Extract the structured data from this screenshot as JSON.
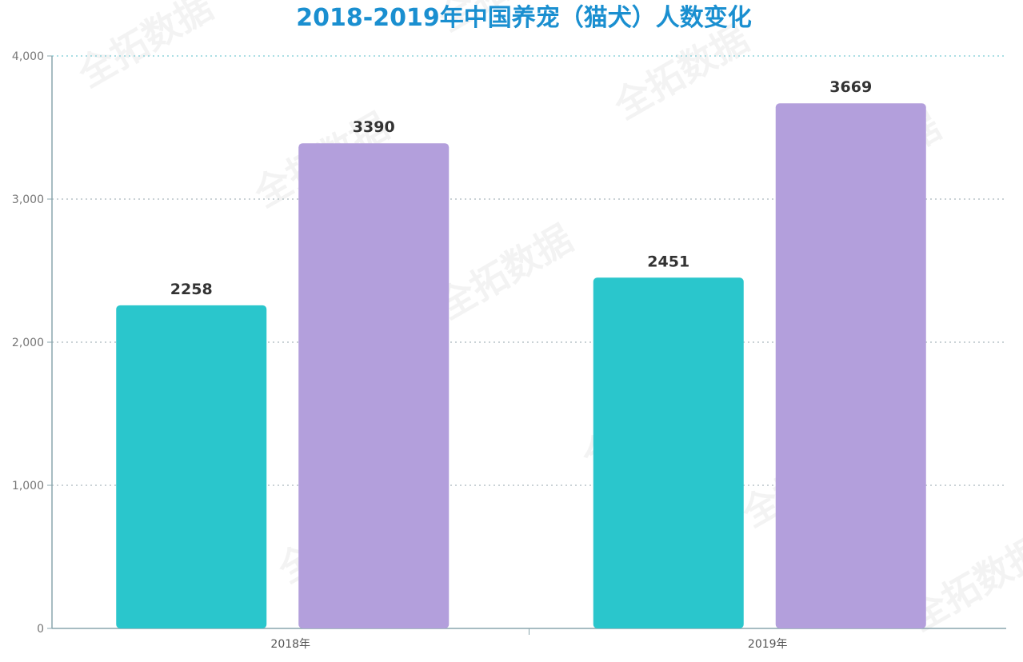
{
  "chart_data": {
    "type": "bar",
    "title": "2018-2019年中国养宠（猫犬）人数变化",
    "xlabel": "",
    "ylabel": "",
    "categories": [
      "2018年",
      "2019年"
    ],
    "series": [
      {
        "values": [
          2258,
          2451
        ],
        "color": "#2ac6cc"
      },
      {
        "values": [
          3390,
          3669
        ],
        "color": "#b39fdc"
      }
    ],
    "ylim": [
      0,
      4000
    ],
    "yticks": [
      0,
      1000,
      2000,
      3000,
      4000
    ],
    "ytick_labels": [
      "0",
      "1,000",
      "2,000",
      "3,000",
      "4,000"
    ],
    "grid": true,
    "legend": "none",
    "watermark": "全拓数据"
  }
}
